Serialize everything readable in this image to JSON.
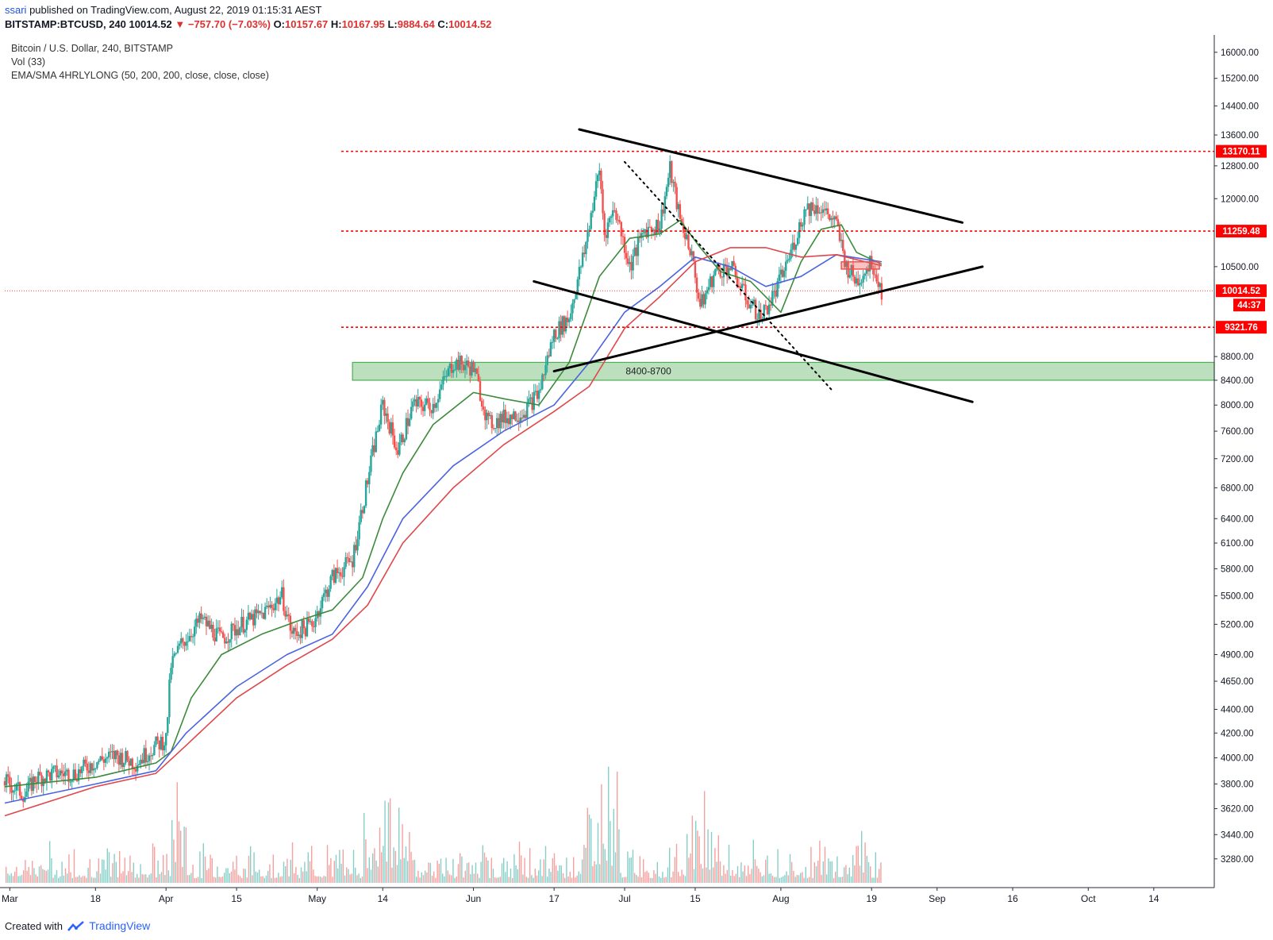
{
  "header": {
    "author": "ssari",
    "published_text": "published on TradingView.com, August 22, 2019 01:15:31 AEST"
  },
  "symbol_line": {
    "symbol": "BITSTAMP:BTCUSD, 240",
    "last": "10014.52",
    "change": "▼ −757.70 (−7.03%)",
    "o_label": "O:",
    "open": "10157.67",
    "h_label": "H:",
    "high": "10167.95",
    "l_label": "L:",
    "low": "9884.64",
    "c_label": "C:",
    "close": "10014.52"
  },
  "legend": {
    "title": "Bitcoin / U.S. Dollar, 240, BITSTAMP",
    "volume": "Vol (33)",
    "indicator": "EMA/SMA 4HRLYLONG (50, 200, 200, close, close, close)"
  },
  "footer": {
    "created_with": "Created with",
    "brand": "TradingView"
  },
  "colors": {
    "up": "#26a69a",
    "down": "#ef5350",
    "ema50": "#3c8a3c",
    "sma200": "#4a63e0",
    "ema200": "#e0474c",
    "level_line": "#ff0000",
    "zone_fill": "#a5d6a7",
    "zone_border": "#4caf50"
  },
  "chart_data": {
    "type": "candlestick",
    "title": "Bitcoin / U.S. Dollar, 240, BITSTAMP",
    "scale": "log",
    "ylim": [
      3100,
      16400
    ],
    "y_ticks": [
      3280,
      3440,
      3620,
      3800,
      4000,
      4200,
      4400,
      4650,
      4900,
      5200,
      5500,
      5800,
      6100,
      6400,
      6800,
      7200,
      7600,
      8000,
      8400,
      8800,
      9321.76,
      10014.52,
      10500,
      11259.48,
      12000,
      12800,
      13170.11,
      13600,
      14400,
      15200,
      16000
    ],
    "y_tick_labels": [
      "3280.00",
      "3440.00",
      "3620.00",
      "3800.00",
      "4000.00",
      "4200.00",
      "4400.00",
      "4650.00",
      "4900.00",
      "5200.00",
      "5500.00",
      "5800.00",
      "6100.00",
      "6400.00",
      "6800.00",
      "7200.00",
      "7600.00",
      "8000.00",
      "8400.00",
      "8800.00",
      "9321.76",
      "10014.52",
      "10500.00",
      "11259.48",
      "12000.00",
      "12800.00",
      "13170.11",
      "13600.00",
      "14400.00",
      "15200.00",
      "16000.00"
    ],
    "x_ticks": [
      "2019-03-01",
      "2019-03-18",
      "2019-04-01",
      "2019-04-15",
      "2019-05-01",
      "2019-05-14",
      "2019-06-01",
      "2019-06-17",
      "2019-07-01",
      "2019-07-15",
      "2019-08-01",
      "2019-08-19",
      "2019-09-01",
      "2019-09-16",
      "2019-10-01",
      "2019-10-14"
    ],
    "x_tick_labels": [
      "Mar",
      "18",
      "Apr",
      "15",
      "May",
      "14",
      "Jun",
      "17",
      "Jul",
      "15",
      "Aug",
      "19",
      "Sep",
      "16",
      "Oct",
      "14"
    ],
    "xlim": [
      "2019-02-28",
      "2019-10-26"
    ],
    "price_series": [
      [
        "2019-02-28",
        3820
      ],
      [
        "2019-03-04",
        3720
      ],
      [
        "2019-03-06",
        3840
      ],
      [
        "2019-03-10",
        3880
      ],
      [
        "2019-03-14",
        3880
      ],
      [
        "2019-03-18",
        3970
      ],
      [
        "2019-03-22",
        4020
      ],
      [
        "2019-03-26",
        3960
      ],
      [
        "2019-03-30",
        4100
      ],
      [
        "2019-04-01",
        4150
      ],
      [
        "2019-04-02",
        4800
      ],
      [
        "2019-04-04",
        5000
      ],
      [
        "2019-04-08",
        5250
      ],
      [
        "2019-04-12",
        5050
      ],
      [
        "2019-04-16",
        5200
      ],
      [
        "2019-04-20",
        5300
      ],
      [
        "2019-04-24",
        5500
      ],
      [
        "2019-04-26",
        5100
      ],
      [
        "2019-04-30",
        5200
      ],
      [
        "2019-05-04",
        5700
      ],
      [
        "2019-05-08",
        5900
      ],
      [
        "2019-05-11",
        6900
      ],
      [
        "2019-05-14",
        8000
      ],
      [
        "2019-05-17",
        7300
      ],
      [
        "2019-05-20",
        8000
      ],
      [
        "2019-05-24",
        8000
      ],
      [
        "2019-05-28",
        8700
      ],
      [
        "2019-06-01",
        8600
      ],
      [
        "2019-06-04",
        7700
      ],
      [
        "2019-06-07",
        7800
      ],
      [
        "2019-06-11",
        7900
      ],
      [
        "2019-06-14",
        8200
      ],
      [
        "2019-06-17",
        9200
      ],
      [
        "2019-06-20",
        9500
      ],
      [
        "2019-06-23",
        10800
      ],
      [
        "2019-06-26",
        12700
      ],
      [
        "2019-06-27",
        11200
      ],
      [
        "2019-06-29",
        11800
      ],
      [
        "2019-07-02",
        10500
      ],
      [
        "2019-07-05",
        11300
      ],
      [
        "2019-07-08",
        11400
      ],
      [
        "2019-07-10",
        12700
      ],
      [
        "2019-07-12",
        11500
      ],
      [
        "2019-07-14",
        10900
      ],
      [
        "2019-07-16",
        9700
      ],
      [
        "2019-07-19",
        10400
      ],
      [
        "2019-07-22",
        10500
      ],
      [
        "2019-07-25",
        9900
      ],
      [
        "2019-07-28",
        9500
      ],
      [
        "2019-07-31",
        10000
      ],
      [
        "2019-08-03",
        10800
      ],
      [
        "2019-08-06",
        11800
      ],
      [
        "2019-08-09",
        11800
      ],
      [
        "2019-08-12",
        11400
      ],
      [
        "2019-08-14",
        10500
      ],
      [
        "2019-08-16",
        10200
      ],
      [
        "2019-08-19",
        10600
      ],
      [
        "2019-08-21",
        10014.52
      ]
    ],
    "series": [
      {
        "name": "EMA 50",
        "points": [
          [
            "2019-02-28",
            3780
          ],
          [
            "2019-03-18",
            3850
          ],
          [
            "2019-03-30",
            3960
          ],
          [
            "2019-04-02",
            4050
          ],
          [
            "2019-04-06",
            4500
          ],
          [
            "2019-04-12",
            4900
          ],
          [
            "2019-04-20",
            5100
          ],
          [
            "2019-04-28",
            5250
          ],
          [
            "2019-05-04",
            5350
          ],
          [
            "2019-05-10",
            5700
          ],
          [
            "2019-05-14",
            6400
          ],
          [
            "2019-05-18",
            7000
          ],
          [
            "2019-05-24",
            7700
          ],
          [
            "2019-06-01",
            8200
          ],
          [
            "2019-06-07",
            8100
          ],
          [
            "2019-06-14",
            8000
          ],
          [
            "2019-06-20",
            8700
          ],
          [
            "2019-06-26",
            10300
          ],
          [
            "2019-07-02",
            11100
          ],
          [
            "2019-07-08",
            11200
          ],
          [
            "2019-07-12",
            11500
          ],
          [
            "2019-07-16",
            10900
          ],
          [
            "2019-07-20",
            10400
          ],
          [
            "2019-07-26",
            10200
          ],
          [
            "2019-08-01",
            9600
          ],
          [
            "2019-08-05",
            10600
          ],
          [
            "2019-08-09",
            11300
          ],
          [
            "2019-08-13",
            11400
          ],
          [
            "2019-08-16",
            10800
          ],
          [
            "2019-08-21",
            10550
          ]
        ]
      },
      {
        "name": "SMA 200",
        "points": [
          [
            "2019-02-28",
            3660
          ],
          [
            "2019-03-18",
            3800
          ],
          [
            "2019-03-30",
            3900
          ],
          [
            "2019-04-05",
            4200
          ],
          [
            "2019-04-15",
            4600
          ],
          [
            "2019-04-25",
            4900
          ],
          [
            "2019-05-04",
            5100
          ],
          [
            "2019-05-11",
            5600
          ],
          [
            "2019-05-18",
            6400
          ],
          [
            "2019-05-28",
            7100
          ],
          [
            "2019-06-07",
            7600
          ],
          [
            "2019-06-17",
            8000
          ],
          [
            "2019-06-24",
            8700
          ],
          [
            "2019-07-01",
            9600
          ],
          [
            "2019-07-08",
            10100
          ],
          [
            "2019-07-15",
            10700
          ],
          [
            "2019-07-22",
            10500
          ],
          [
            "2019-07-29",
            10100
          ],
          [
            "2019-08-05",
            10300
          ],
          [
            "2019-08-12",
            10750
          ],
          [
            "2019-08-21",
            10600
          ]
        ]
      },
      {
        "name": "EMA 200",
        "points": [
          [
            "2019-02-28",
            3570
          ],
          [
            "2019-03-18",
            3780
          ],
          [
            "2019-03-30",
            3880
          ],
          [
            "2019-04-05",
            4100
          ],
          [
            "2019-04-15",
            4500
          ],
          [
            "2019-04-25",
            4800
          ],
          [
            "2019-05-04",
            5050
          ],
          [
            "2019-05-11",
            5400
          ],
          [
            "2019-05-18",
            6100
          ],
          [
            "2019-05-28",
            6800
          ],
          [
            "2019-06-07",
            7400
          ],
          [
            "2019-06-17",
            7900
          ],
          [
            "2019-06-24",
            8300
          ],
          [
            "2019-07-01",
            9300
          ],
          [
            "2019-07-08",
            9900
          ],
          [
            "2019-07-15",
            10600
          ],
          [
            "2019-07-22",
            10900
          ],
          [
            "2019-07-29",
            10900
          ],
          [
            "2019-08-05",
            10700
          ],
          [
            "2019-08-12",
            10750
          ],
          [
            "2019-08-21",
            10520
          ]
        ]
      }
    ],
    "levels": [
      {
        "price": 13170.11,
        "label": "13170.11",
        "style": "dashed-red"
      },
      {
        "price": 11259.48,
        "label": "11259.48",
        "style": "dashed-red"
      },
      {
        "price": 10014.52,
        "label": "10014.52",
        "style": "dotted-red-last"
      },
      {
        "price": 9321.76,
        "label": "9321.76",
        "style": "dashed-red"
      }
    ],
    "countdown": "44:37",
    "zone": {
      "low": 8400,
      "high": 8700,
      "label": "8400-8700",
      "from": "2019-05-08"
    },
    "trendlines": [
      {
        "name": "upper-descending",
        "from": [
          "2019-06-22",
          13750
        ],
        "to": [
          "2019-09-06",
          11450
        ]
      },
      {
        "name": "lower-ascending",
        "from": [
          "2019-06-17",
          8550
        ],
        "to": [
          "2019-09-10",
          10500
        ]
      },
      {
        "name": "lower-descending",
        "from": [
          "2019-06-13",
          10200
        ],
        "to": [
          "2019-09-08",
          8050
        ]
      },
      {
        "name": "dotted-diagonal",
        "from": [
          "2019-07-01",
          12900
        ],
        "to": [
          "2019-08-11",
          8250
        ],
        "dotted": true
      }
    ],
    "volume_axis_note": "Vol (33)"
  }
}
